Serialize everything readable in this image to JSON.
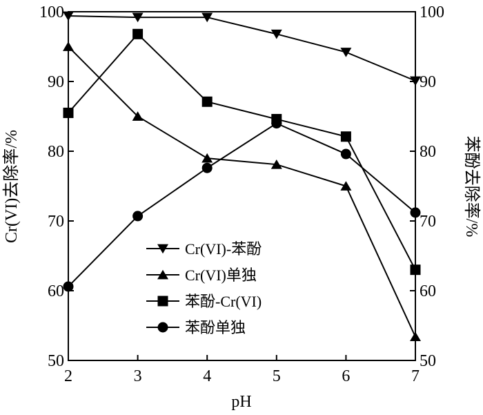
{
  "chart_data": {
    "type": "line",
    "title": "",
    "xlabel": "pH",
    "ylabel": "Cr(VI)去除率/%",
    "y2label": "苯酚去除率/%",
    "x": [
      2,
      3,
      4,
      5,
      6,
      7
    ],
    "xlim": [
      2,
      7
    ],
    "ylim": [
      50,
      100
    ],
    "y2lim": [
      50,
      100
    ],
    "xticks": [
      "2",
      "3",
      "4",
      "5",
      "6",
      "7"
    ],
    "yticks": [
      "50",
      "60",
      "70",
      "80",
      "90",
      "100"
    ],
    "y2ticks": [
      "50",
      "60",
      "70",
      "80",
      "90",
      "100"
    ],
    "grid": false,
    "legend_position": "lower-center",
    "series": [
      {
        "name": "Cr(VI)-苯酚",
        "marker": "triangle-down",
        "axis": "left",
        "values": [
          99.4,
          99.2,
          99.2,
          96.8,
          94.2,
          90.1
        ]
      },
      {
        "name": "Cr(VI)单独",
        "marker": "triangle-up",
        "axis": "left",
        "values": [
          95.0,
          85.0,
          79.0,
          78.1,
          75.0,
          53.4
        ]
      },
      {
        "name": "苯酚-Cr(VI)",
        "marker": "square",
        "axis": "right",
        "values": [
          85.5,
          96.8,
          87.1,
          84.6,
          82.1,
          63.0
        ]
      },
      {
        "name": "苯酚单独",
        "marker": "circle",
        "axis": "right",
        "values": [
          60.6,
          70.7,
          77.6,
          84.0,
          79.6,
          71.2
        ]
      }
    ],
    "line_color": "#000000"
  }
}
